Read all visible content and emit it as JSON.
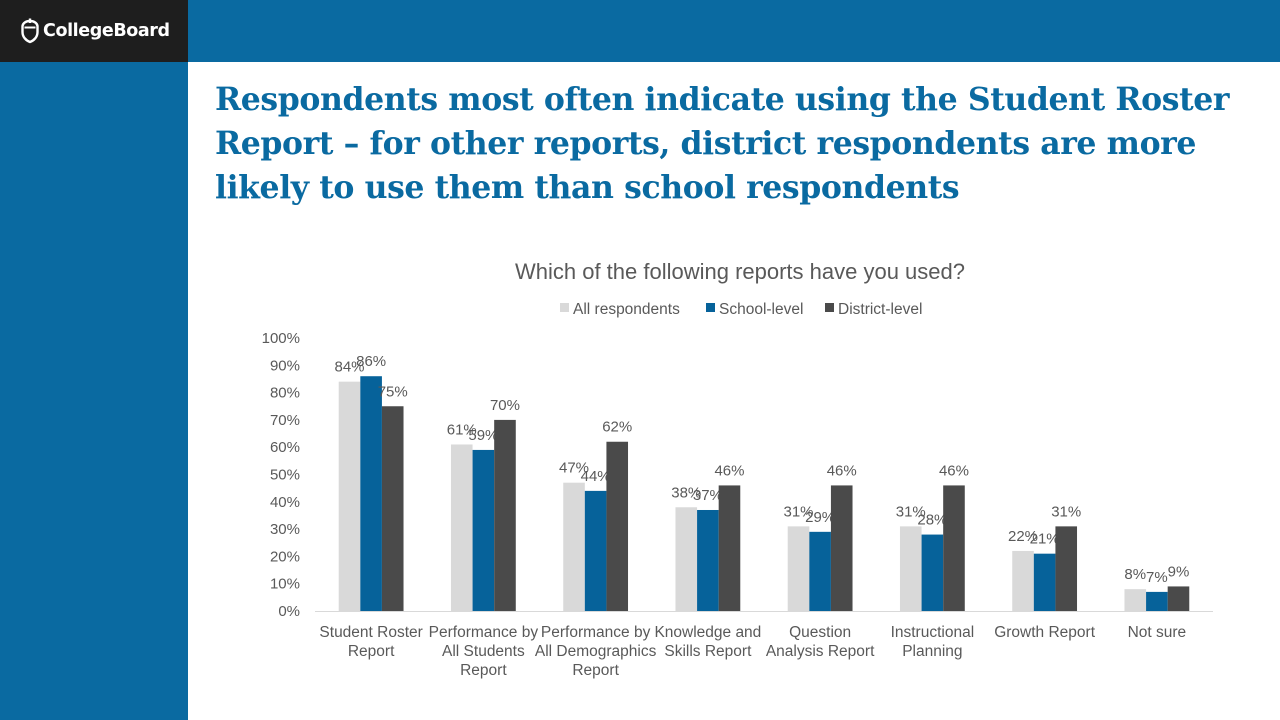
{
  "brand": {
    "logo_text": "CollegeBoard"
  },
  "slide": {
    "title": "Respondents most often indicate using the Student Roster Report – for other reports, district respondents are more likely to use them than school respondents"
  },
  "colors": {
    "brand_blue": "#0a6aa1",
    "all": "#d9d9d9",
    "school": "#06629a",
    "district": "#4a4a4a"
  },
  "chart_data": {
    "type": "bar",
    "title": "Which of the following reports have you used?",
    "legend_position": "top",
    "categories": [
      "Student Roster Report",
      "Performance by All Students Report",
      "Performance by All Demographics Report",
      "Knowledge and Skills Report",
      "Question Analysis Report",
      "Instructional Planning",
      "Growth Report",
      "Not sure"
    ],
    "series": [
      {
        "name": "All respondents",
        "color": "#d9d9d9",
        "values": [
          84,
          61,
          47,
          38,
          31,
          31,
          22,
          8
        ]
      },
      {
        "name": "School-level",
        "color": "#06629a",
        "values": [
          86,
          59,
          44,
          37,
          29,
          28,
          21,
          7
        ]
      },
      {
        "name": "District-level",
        "color": "#4a4a4a",
        "values": [
          75,
          70,
          62,
          46,
          46,
          46,
          31,
          9
        ]
      }
    ],
    "ylim": [
      0,
      100
    ],
    "yticks": [
      "0%",
      "10%",
      "20%",
      "30%",
      "40%",
      "50%",
      "60%",
      "70%",
      "80%",
      "90%",
      "100%"
    ],
    "value_suffix": "%",
    "xlabel": "",
    "ylabel": "",
    "grid": false
  }
}
